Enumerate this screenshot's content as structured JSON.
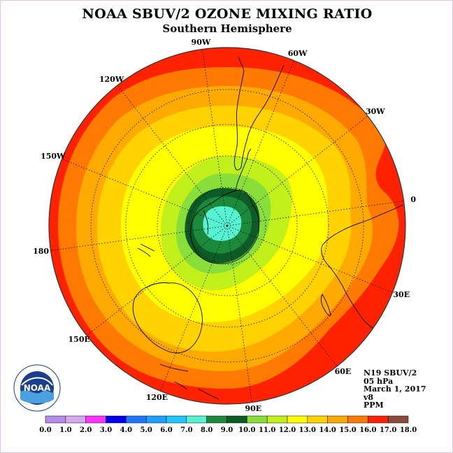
{
  "header": {
    "title": "NOAA SBUV/2 OZONE MIXING RATIO",
    "subtitle": "Southern Hemisphere"
  },
  "map": {
    "projection": "south-polar-stereographic",
    "longitude_labels": [
      "90W",
      "60W",
      "30W",
      "0",
      "30E",
      "60E",
      "90E",
      "120E",
      "150E",
      "180",
      "150W",
      "120W"
    ],
    "contour_colors": {
      "below_8": "#55f2d4",
      "8_9": "#1b8a3b",
      "9_10": "#0e5c25",
      "10_11": "#8ade3a",
      "11_12": "#c1f01a",
      "12_13": "#ffff00",
      "13_14": "#ffd200",
      "14_15": "#ffaa00",
      "15_16": "#ff7a00",
      "16_17": "#ff2200"
    }
  },
  "info": {
    "satellite": "N19 SBUV/2",
    "level": "05 hPa",
    "date": "March 1, 2017",
    "version": "v8",
    "units": "PPM"
  },
  "logo": {
    "text": "NOAA",
    "icon": "noaa-logo-icon"
  },
  "colorbar": {
    "labels": [
      "0.0",
      "1.0",
      "2.0",
      "3.0",
      "4.0",
      "5.0",
      "6.0",
      "7.0",
      "8.0",
      "9.0",
      "10.0",
      "11.0",
      "12.0",
      "13.0",
      "14.0",
      "15.0",
      "16.0",
      "17.0",
      "18.0"
    ],
    "colors": [
      "#b58ce8",
      "#d6a8f0",
      "#ff33ff",
      "#0000ee",
      "#1e78ff",
      "#1ea0ff",
      "#1ec8ff",
      "#55f2d4",
      "#1b8a3b",
      "#0e5c25",
      "#8ade3a",
      "#c1f01a",
      "#ffff00",
      "#ffd200",
      "#ffaa00",
      "#ff7a00",
      "#ff2200",
      "#8b4a3a"
    ]
  }
}
